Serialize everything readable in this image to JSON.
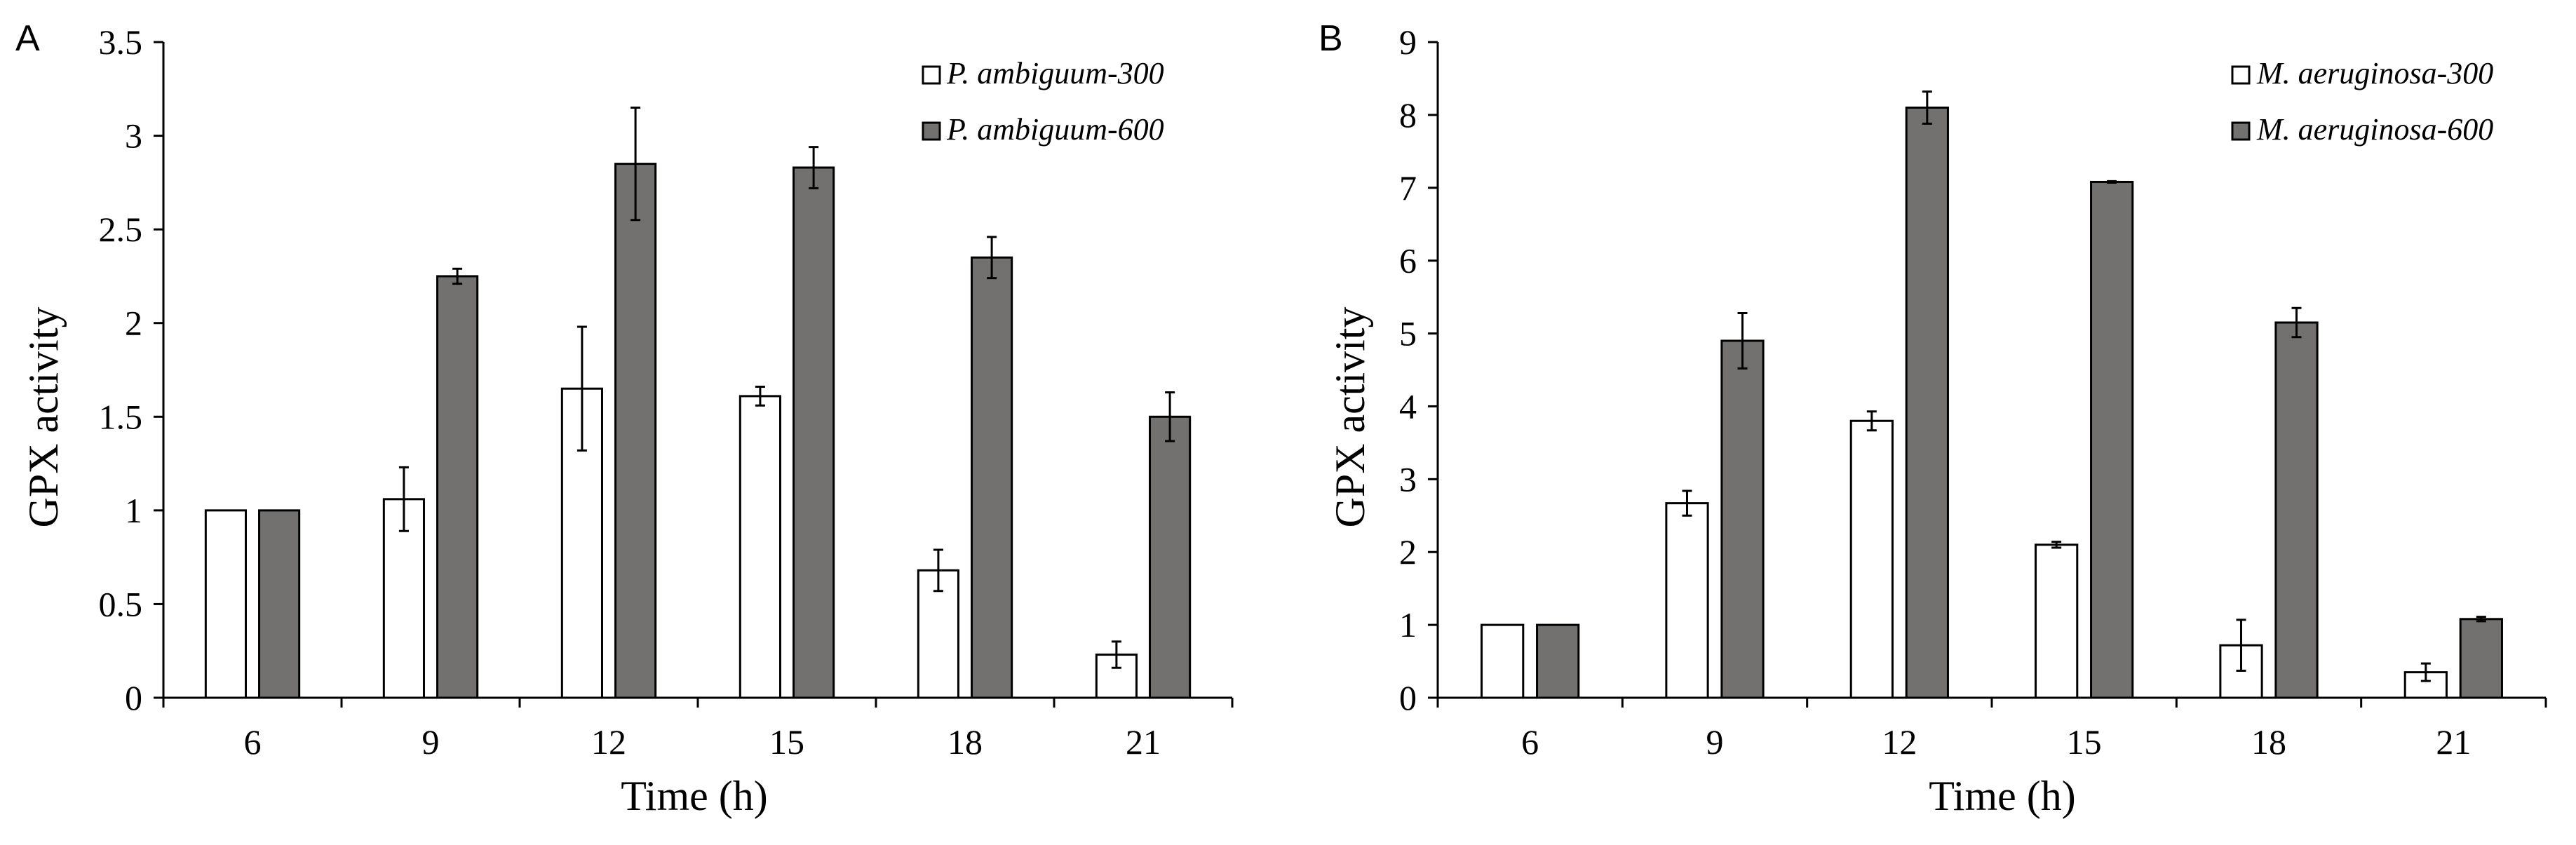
{
  "chart_data": [
    {
      "panel": "A",
      "type": "bar",
      "xlabel": "Time (h)",
      "ylabel": "GPX activity",
      "ylim": [
        0,
        3.5
      ],
      "yticks": [
        "0",
        "0.5",
        "1",
        "1.5",
        "2",
        "2.5",
        "3",
        "3.5"
      ],
      "categories": [
        "6",
        "9",
        "12",
        "15",
        "18",
        "21"
      ],
      "legend_position": "top-right",
      "series": [
        {
          "name": "P. ambiguum-300",
          "color": "#ffffff",
          "values": [
            1.0,
            1.06,
            1.65,
            1.61,
            0.68,
            0.23
          ],
          "errors": [
            0.0,
            0.17,
            0.33,
            0.05,
            0.11,
            0.07
          ]
        },
        {
          "name": "P. ambiguum-600",
          "color": "#737070",
          "values": [
            1.0,
            2.25,
            2.85,
            2.83,
            2.35,
            1.5
          ],
          "errors": [
            0.0,
            0.04,
            0.3,
            0.11,
            0.11,
            0.13
          ]
        }
      ]
    },
    {
      "panel": "B",
      "type": "bar",
      "xlabel": "Time (h)",
      "ylabel": "GPX activity",
      "ylim": [
        0,
        9
      ],
      "yticks": [
        "0",
        "1",
        "2",
        "3",
        "4",
        "5",
        "6",
        "7",
        "8",
        "9"
      ],
      "categories": [
        "6",
        "9",
        "12",
        "15",
        "18",
        "21"
      ],
      "legend_position": "top-right",
      "series": [
        {
          "name": "M. aeruginosa-300",
          "color": "#ffffff",
          "values": [
            1.0,
            2.67,
            3.8,
            2.1,
            0.72,
            0.35
          ],
          "errors": [
            0.0,
            0.17,
            0.13,
            0.04,
            0.35,
            0.12
          ]
        },
        {
          "name": "M. aeruginosa-600",
          "color": "#737070",
          "values": [
            1.0,
            4.9,
            8.1,
            7.08,
            5.15,
            1.08
          ],
          "errors": [
            0.0,
            0.38,
            0.22,
            0.01,
            0.2,
            0.03
          ]
        }
      ]
    }
  ]
}
